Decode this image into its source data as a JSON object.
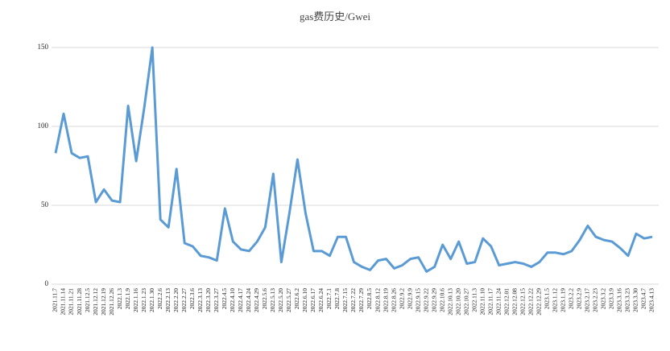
{
  "chart_data": {
    "type": "line",
    "title": "gas费历史/Gwei",
    "categories": [
      "2021.11.7",
      "2021.11.14",
      "2021.11.21",
      "2021.11.28",
      "2021.12.5",
      "2021.12.12",
      "2021.12.19",
      "2021.12.26",
      "2022.1.3",
      "2022.1.9",
      "2022.1.16",
      "2022.1.23",
      "2022.1.30",
      "2022.2.6",
      "2022.2.13",
      "2022.2.20",
      "2022.2.27",
      "2022.3.6",
      "2022.3.13",
      "2022.3.20",
      "2022.3.27",
      "2022.4.5",
      "2022.4.10",
      "2022.4.17",
      "2022.4.24",
      "2022.4.29",
      "2022.5.6",
      "2022.5.13",
      "2022.5.20",
      "2022.5.27",
      "2022.6.2",
      "2022.6.10",
      "2022.6.17",
      "2022.6.24",
      "2022.7.1",
      "2022.7.8",
      "2022.7.15",
      "2022.7.22",
      "2022.7.29",
      "2022.8.5",
      "2022.8.12",
      "2022.8.19",
      "2022.8.26",
      "2022.9.2",
      "2022.9.9",
      "2022.9.15",
      "2022.9.22",
      "2022.9.29",
      "2022.10.6",
      "2022.10.13",
      "2022.10.20",
      "2022.10.27",
      "2022.11.3",
      "2022.11.10",
      "2022.11.17",
      "2022.11.24",
      "2022.12.01",
      "2022.12.08",
      "2022.12.15",
      "2022.12.22",
      "2022.12.29",
      "2023.1.5",
      "2023.1.12",
      "2023.1.19",
      "2023.2.2",
      "2023.2.9",
      "2023.2.17",
      "2023.2.23",
      "2023.3.2",
      "2023.3.9",
      "2023.3.16",
      "2023.3.23",
      "2023.3.30",
      "2023.4.7",
      "2023.4.13"
    ],
    "values": [
      83,
      108,
      83,
      80,
      81,
      52,
      60,
      53,
      52,
      113,
      78,
      112,
      150,
      41,
      36,
      73,
      26,
      24,
      18,
      17,
      15,
      48,
      27,
      22,
      21,
      27,
      36,
      70,
      14,
      45,
      79,
      45,
      21,
      21,
      18,
      30,
      30,
      14,
      11,
      9,
      15,
      16,
      10,
      12,
      16,
      17,
      8,
      11,
      25,
      16,
      27,
      13,
      14,
      29,
      24,
      12,
      13,
      14,
      13,
      11,
      14,
      20,
      20,
      19,
      21,
      28,
      37,
      30,
      28,
      27,
      23,
      18,
      32,
      29,
      30
    ],
    "color": "#5b9bd5",
    "ylim": [
      0,
      150
    ],
    "yticks": [
      0,
      50,
      100,
      150
    ],
    "grid": true
  }
}
